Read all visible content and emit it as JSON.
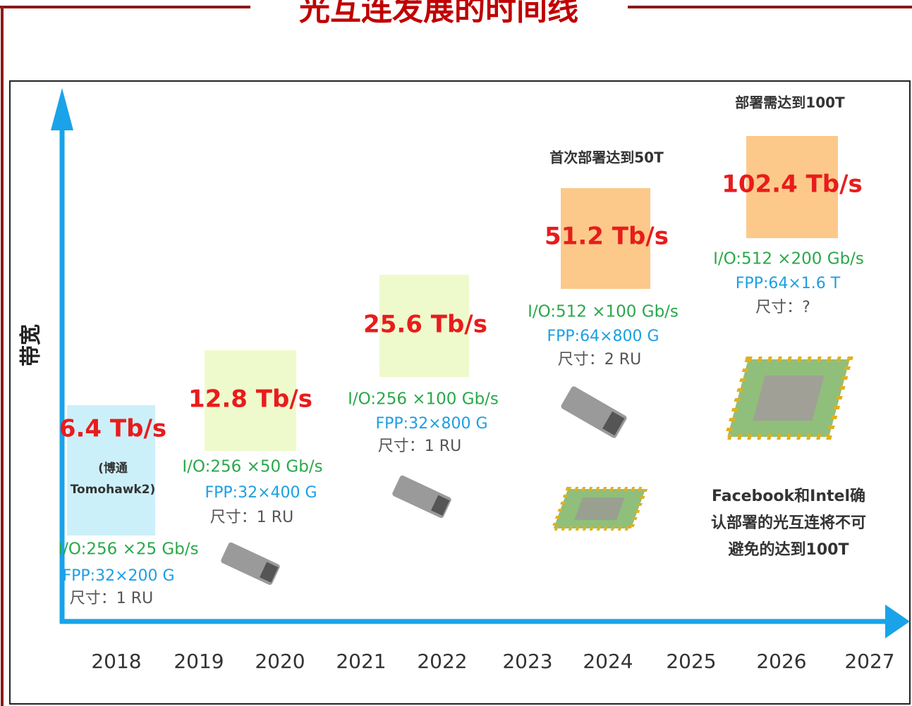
{
  "title": "光互连发展的时间线",
  "y_axis_label": "带宽",
  "x_axis": {
    "years": [
      "2018",
      "2019",
      "2020",
      "2021",
      "2022",
      "2023",
      "2024",
      "2025",
      "2026",
      "2027"
    ]
  },
  "milestones": [
    {
      "bandwidth": "6.4 Tb/s",
      "vendor_lines": [
        "(博通",
        "Tomohawk2)"
      ],
      "io": "I/O:256 ×25 Gb/s",
      "fpp": "FPP:32×200 G",
      "size": "尺寸：1 RU"
    },
    {
      "bandwidth": "12.8 Tb/s",
      "io": "I/O:256 ×50 Gb/s",
      "fpp": "FPP:32×400 G",
      "size": "尺寸：1 RU"
    },
    {
      "bandwidth": "25.6 Tb/s",
      "io": "I/O:256 ×100 Gb/s",
      "fpp": "FPP:32×800 G",
      "size": "尺寸：1 RU"
    },
    {
      "note": "首次部署达到50T",
      "bandwidth": "51.2 Tb/s",
      "io": "I/O:512 ×100 Gb/s",
      "fpp": "FPP:64×800 G",
      "size": "尺寸：2 RU"
    },
    {
      "note": "部署需达到100T",
      "bandwidth": "102.4 Tb/s",
      "io": "I/O:512 ×200 Gb/s",
      "fpp": "FPP:64×1.6 T",
      "size": "尺寸：?"
    }
  ],
  "footnote_lines": [
    "Facebook和Intel确",
    "认部署的光互连将不可",
    "避免的达到100T"
  ]
}
